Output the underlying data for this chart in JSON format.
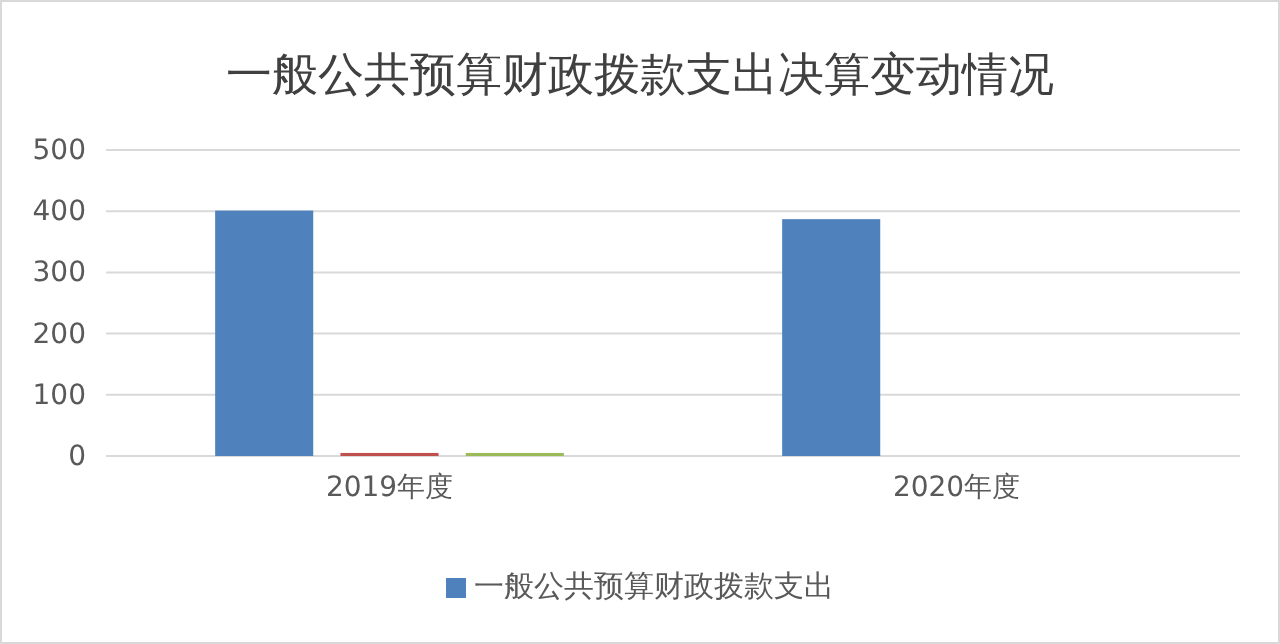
{
  "chart_data": {
    "type": "bar",
    "title": "一般公共预算财政拨款支出决算变动情况",
    "categories": [
      "2019年度",
      "2020年度"
    ],
    "series": [
      {
        "name": "一般公共预算财政拨款支出",
        "color": "#4f81bd",
        "values": [
          401,
          387
        ]
      },
      {
        "color": "#c0504d",
        "values": [
          5,
          0
        ]
      },
      {
        "color": "#9bbb59",
        "values": [
          5,
          0
        ]
      }
    ],
    "ylim": [
      0,
      500
    ],
    "yticks": [
      0,
      100,
      200,
      300,
      400,
      500
    ],
    "grid": "y",
    "legend": "bottom"
  }
}
